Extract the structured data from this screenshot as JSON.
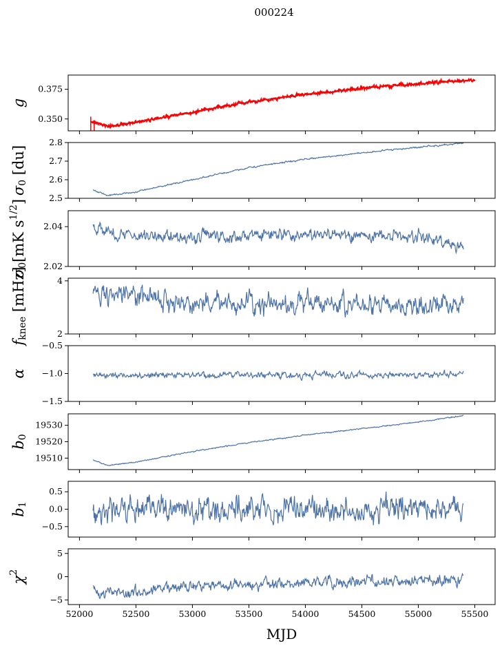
{
  "figure": {
    "title": "000224",
    "xlabel": "MJD"
  },
  "colors": {
    "series": "#4c72a5",
    "highlight": "#ff0000",
    "axes": "#000000"
  },
  "chart_data": [
    {
      "type": "line",
      "key": "g",
      "ylabel_base": "g",
      "ylabel_sub": "",
      "xlim": [
        51900,
        55680
      ],
      "ylim": [
        0.34,
        0.387
      ],
      "yticks": [
        0.35,
        0.375
      ],
      "ytick_labels": [
        "0.350",
        "0.375"
      ],
      "x_start": 52100,
      "x_end": 55400,
      "noise": 0.0004,
      "anchors": [
        [
          52100,
          0.347
        ],
        [
          52250,
          0.3435
        ],
        [
          52500,
          0.347
        ],
        [
          53000,
          0.3555
        ],
        [
          53500,
          0.3645
        ],
        [
          54000,
          0.3705
        ],
        [
          54500,
          0.376
        ],
        [
          55000,
          0.3795
        ],
        [
          55400,
          0.3825
        ]
      ],
      "overlay": {
        "name": "red-model",
        "color": "#ff0000",
        "x_start": 52100,
        "x_end": 55500,
        "noise": 0.0009,
        "anchors": [
          [
            52100,
            0.348
          ],
          [
            52250,
            0.3435
          ],
          [
            52500,
            0.347
          ],
          [
            53000,
            0.3555
          ],
          [
            53500,
            0.3645
          ],
          [
            54000,
            0.3705
          ],
          [
            54500,
            0.376
          ],
          [
            55000,
            0.3795
          ],
          [
            55400,
            0.3825
          ],
          [
            55500,
            0.3825
          ]
        ]
      }
    },
    {
      "type": "line",
      "key": "sigma0",
      "ylabel_base": "σ",
      "ylabel_sub": "0",
      "ylabel_suffix": " [du]",
      "xlim": [
        51900,
        55680
      ],
      "ylim": [
        2.5,
        2.8
      ],
      "yticks": [
        2.5,
        2.6,
        2.7,
        2.8
      ],
      "ytick_labels": [
        "2.5",
        "2.6",
        "2.7",
        "2.8"
      ],
      "x_start": 52120,
      "x_end": 55400,
      "noise": 0.003,
      "anchors": [
        [
          52120,
          2.545
        ],
        [
          52250,
          2.515
        ],
        [
          52500,
          2.535
        ],
        [
          53000,
          2.6
        ],
        [
          53500,
          2.665
        ],
        [
          54000,
          2.71
        ],
        [
          54500,
          2.745
        ],
        [
          55000,
          2.775
        ],
        [
          55400,
          2.795
        ]
      ]
    },
    {
      "type": "line",
      "key": "sigma0_mk",
      "ylabel_base": "σ",
      "ylabel_sub": "0",
      "ylabel_suffix": "[mK s",
      "ylabel_sup": "1/2",
      "ylabel_close": "]",
      "xlim": [
        51900,
        55680
      ],
      "ylim": [
        2.02,
        2.048
      ],
      "yticks": [
        2.02,
        2.04
      ],
      "ytick_labels": [
        "2.02",
        "2.04"
      ],
      "x_start": 52120,
      "x_end": 55400,
      "noise": 0.0022,
      "anchors": [
        [
          52120,
          2.041
        ],
        [
          52300,
          2.036
        ],
        [
          53000,
          2.035
        ],
        [
          54000,
          2.036
        ],
        [
          55000,
          2.035
        ],
        [
          55400,
          2.03
        ]
      ]
    },
    {
      "type": "line",
      "key": "fknee",
      "ylabel_base": "f",
      "ylabel_sub": "knee",
      "ylabel_suffix": " [mHz]",
      "xlim": [
        51900,
        55680
      ],
      "ylim": [
        2.0,
        4.1
      ],
      "yticks": [
        2,
        4
      ],
      "ytick_labels": [
        "2",
        "4"
      ],
      "x_start": 52120,
      "x_end": 55400,
      "noise": 0.28,
      "anchors": [
        [
          52120,
          3.6
        ],
        [
          52400,
          3.4
        ],
        [
          53000,
          3.15
        ],
        [
          54000,
          3.2
        ],
        [
          55000,
          3.05
        ],
        [
          55400,
          3.1
        ]
      ]
    },
    {
      "type": "line",
      "key": "alpha",
      "ylabel_base": "α",
      "ylabel_sub": "",
      "xlim": [
        51900,
        55680
      ],
      "ylim": [
        -1.5,
        -0.5
      ],
      "yticks": [
        -1.5,
        -1.0,
        -0.5
      ],
      "ytick_labels": [
        "−1.5",
        "−1.0",
        "−0.5"
      ],
      "x_start": 52120,
      "x_end": 55400,
      "noise": 0.04,
      "anchors": [
        [
          52120,
          -1.03
        ],
        [
          55400,
          -1.02
        ]
      ]
    },
    {
      "type": "line",
      "key": "b0",
      "ylabel_base": "b",
      "ylabel_sub": "0",
      "xlim": [
        51900,
        55680
      ],
      "ylim": [
        19503,
        19537
      ],
      "yticks": [
        19510,
        19520,
        19530
      ],
      "ytick_labels": [
        "19510",
        "19520",
        "19530"
      ],
      "x_start": 52120,
      "x_end": 55400,
      "noise": 0.25,
      "anchors": [
        [
          52120,
          19509
        ],
        [
          52250,
          19505.5
        ],
        [
          52500,
          19507.5
        ],
        [
          53000,
          19514
        ],
        [
          53500,
          19519.5
        ],
        [
          54000,
          19524
        ],
        [
          54500,
          19528
        ],
        [
          55000,
          19532
        ],
        [
          55400,
          19536
        ]
      ]
    },
    {
      "type": "line",
      "key": "b1",
      "ylabel_base": "b",
      "ylabel_sub": "1",
      "xlim": [
        51900,
        55680
      ],
      "ylim": [
        -0.8,
        0.8
      ],
      "yticks": [
        -0.5,
        0.0,
        0.5
      ],
      "ytick_labels": [
        "−0.5",
        "0.0",
        "0.5"
      ],
      "x_start": 52120,
      "x_end": 55400,
      "noise": 0.25,
      "anchors": [
        [
          52120,
          0.0
        ],
        [
          55400,
          0.0
        ]
      ]
    },
    {
      "type": "line",
      "key": "chi2",
      "ylabel_base": "χ",
      "ylabel_sub": "",
      "ylabel_sup": "2",
      "xlim": [
        51900,
        55680
      ],
      "ylim": [
        -6,
        6
      ],
      "yticks": [
        -5,
        0,
        5
      ],
      "ytick_labels": [
        "−5",
        "0",
        "5"
      ],
      "x_start": 52120,
      "x_end": 55400,
      "noise": 0.85,
      "anchors": [
        [
          52120,
          -2.5
        ],
        [
          52300,
          -3.5
        ],
        [
          52600,
          -3
        ],
        [
          53000,
          -2
        ],
        [
          54000,
          -1.3
        ],
        [
          55000,
          -1
        ],
        [
          55400,
          -0.5
        ]
      ],
      "xticks": [
        52000,
        52500,
        53000,
        53500,
        54000,
        54500,
        55000,
        55500
      ],
      "xtick_labels": [
        "52000",
        "52500",
        "53000",
        "53500",
        "54000",
        "54500",
        "55000",
        "55500"
      ]
    }
  ]
}
